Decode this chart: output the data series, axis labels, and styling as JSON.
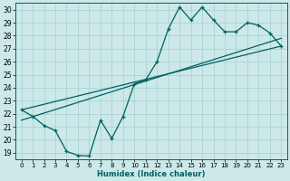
{
  "xlabel": "Humidex (Indice chaleur)",
  "xlim": [
    -0.5,
    23.5
  ],
  "ylim": [
    18.5,
    30.5
  ],
  "xticks": [
    0,
    1,
    2,
    3,
    4,
    5,
    6,
    7,
    8,
    9,
    10,
    11,
    12,
    13,
    14,
    15,
    16,
    17,
    18,
    19,
    20,
    21,
    22,
    23
  ],
  "yticks": [
    19,
    20,
    21,
    22,
    23,
    24,
    25,
    26,
    27,
    28,
    29,
    30
  ],
  "bg_color": "#cce8e8",
  "grid_color": "#aad4d4",
  "line_color": "#006060",
  "curve1_x": [
    0,
    1,
    2,
    3,
    4,
    5,
    6,
    7,
    8,
    9,
    10,
    11,
    12,
    13,
    14,
    15,
    16,
    17,
    18,
    19,
    20,
    21,
    22,
    23
  ],
  "curve1_y": [
    22.3,
    21.8,
    21.1,
    20.7,
    19.1,
    18.8,
    18.75,
    21.5,
    20.1,
    21.8,
    24.3,
    24.6,
    26.0,
    28.5,
    30.2,
    29.2,
    30.2,
    29.2,
    28.3,
    28.3,
    29.0,
    28.8,
    28.2,
    27.2
  ],
  "curve2_x": [
    0,
    23
  ],
  "curve2_y": [
    22.3,
    27.2
  ],
  "curve3_x": [
    0,
    23
  ],
  "curve3_y": [
    21.5,
    27.8
  ]
}
